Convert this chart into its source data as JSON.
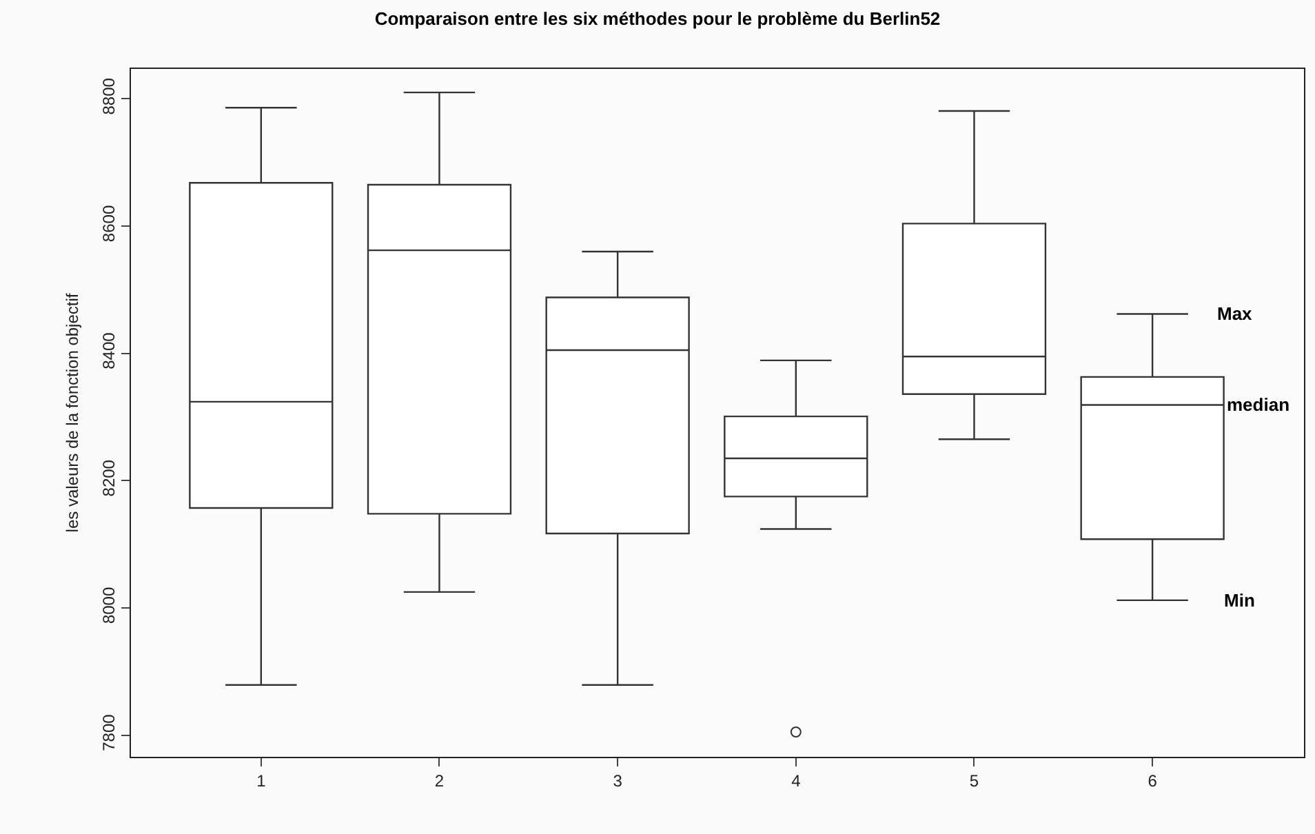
{
  "chart_data": {
    "type": "box",
    "title": "Comparaison entre les six méthodes pour le problème du Berlin52",
    "ylabel": "les valeurs de la fonction objectif",
    "categories": [
      "1",
      "2",
      "3",
      "4",
      "5",
      "6"
    ],
    "series": [
      {
        "color": "#333333",
        "boxes": [
          {
            "low": 7879,
            "q1": 8157,
            "median": 8324,
            "q3": 8668,
            "high": 8786
          },
          {
            "low": 8025,
            "q1": 8148,
            "median": 8562,
            "q3": 8665,
            "high": 8810
          },
          {
            "low": 7879,
            "q1": 8117,
            "median": 8405,
            "q3": 8488,
            "high": 8560
          },
          {
            "low": 8124,
            "q1": 8175,
            "median": 8235,
            "q3": 8301,
            "high": 8389,
            "outliers": [
              7805
            ]
          },
          {
            "low": 8265,
            "q1": 8336,
            "median": 8395,
            "q3": 8604,
            "high": 8781
          },
          {
            "low": 8012,
            "q1": 8108,
            "median": 8319,
            "q3": 8363,
            "high": 8462
          }
        ]
      }
    ],
    "ylim": [
      7766,
      8847
    ],
    "yticks": [
      7800,
      8000,
      8200,
      8400,
      8600,
      8800
    ],
    "annotations": [
      "Max",
      "median",
      "Min"
    ]
  }
}
